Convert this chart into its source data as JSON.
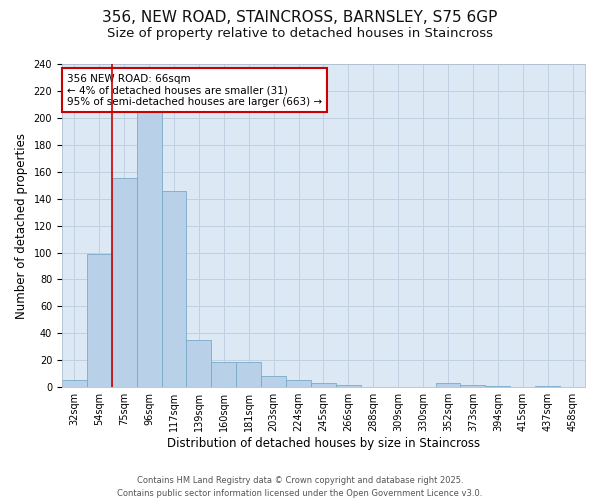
{
  "title_line1": "356, NEW ROAD, STAINCROSS, BARNSLEY, S75 6GP",
  "title_line2": "Size of property relative to detached houses in Staincross",
  "xlabel": "Distribution of detached houses by size in Staincross",
  "ylabel": "Number of detached properties",
  "categories": [
    "32sqm",
    "54sqm",
    "75sqm",
    "96sqm",
    "117sqm",
    "139sqm",
    "160sqm",
    "181sqm",
    "203sqm",
    "224sqm",
    "245sqm",
    "266sqm",
    "288sqm",
    "309sqm",
    "330sqm",
    "352sqm",
    "373sqm",
    "394sqm",
    "415sqm",
    "437sqm",
    "458sqm"
  ],
  "values": [
    5,
    99,
    155,
    205,
    146,
    35,
    19,
    19,
    8,
    5,
    3,
    2,
    0,
    0,
    0,
    3,
    2,
    1,
    0,
    1,
    0
  ],
  "bar_color": "#b8d0e8",
  "bar_edge_color": "#7aaac8",
  "vline_color": "#cc0000",
  "vline_x": 1.5,
  "annotation_text": "356 NEW ROAD: 66sqm\n← 4% of detached houses are smaller (31)\n95% of semi-detached houses are larger (663) →",
  "annotation_box_color": "#ffffff",
  "annotation_box_edge_color": "#cc0000",
  "ylim": [
    0,
    240
  ],
  "yticks": [
    0,
    20,
    40,
    60,
    80,
    100,
    120,
    140,
    160,
    180,
    200,
    220,
    240
  ],
  "grid_color": "#c0d0e0",
  "bg_color": "#dce8f4",
  "fig_bg_color": "#ffffff",
  "footer": "Contains HM Land Registry data © Crown copyright and database right 2025.\nContains public sector information licensed under the Open Government Licence v3.0.",
  "title_fontsize": 11,
  "subtitle_fontsize": 9.5,
  "tick_fontsize": 7,
  "label_fontsize": 8.5,
  "annotation_fontsize": 7.5,
  "footer_fontsize": 6.0
}
